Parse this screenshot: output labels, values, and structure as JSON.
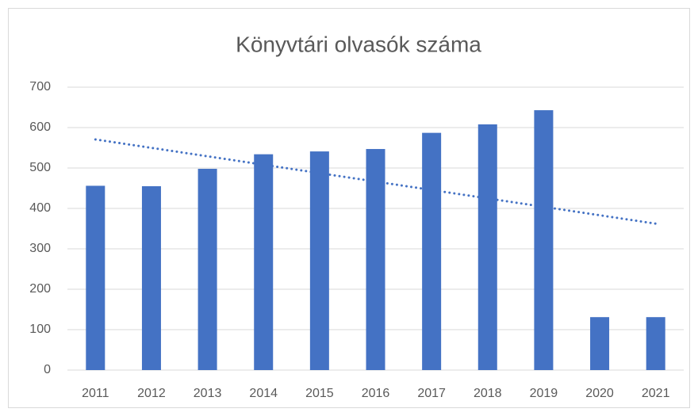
{
  "chart_data": {
    "type": "bar",
    "title": "Könyvtári olvasók száma",
    "categories": [
      "2011",
      "2012",
      "2013",
      "2014",
      "2015",
      "2016",
      "2017",
      "2018",
      "2019",
      "2020",
      "2021"
    ],
    "values": [
      456,
      455,
      498,
      534,
      541,
      547,
      587,
      608,
      643,
      131,
      131
    ],
    "color": "#4472c4",
    "ylim": [
      0,
      700
    ],
    "yticks": [
      0,
      100,
      200,
      300,
      400,
      500,
      600,
      700
    ],
    "grid": true,
    "trendline": "linear"
  }
}
